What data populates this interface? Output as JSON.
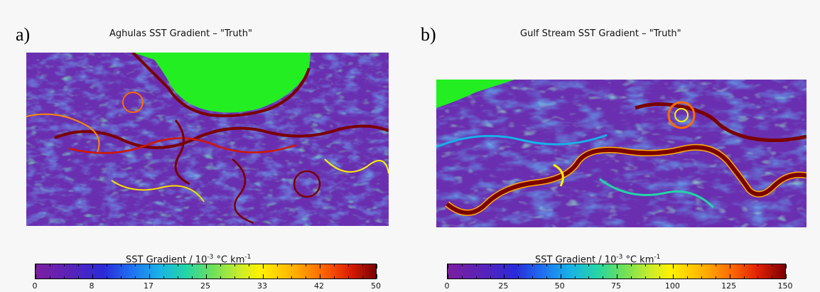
{
  "panel_a": {
    "letter": "a)",
    "title": "Aghulas SST Gradient – \"Truth\"",
    "colorbar": {
      "title_prefix": "SST Gradient / 10",
      "title_exp": "-3",
      "title_unit": " °C km",
      "title_unit_exp": "-1",
      "ticks": [
        "0",
        "8",
        "17",
        "25",
        "33",
        "42",
        "50"
      ]
    }
  },
  "panel_b": {
    "letter": "b)",
    "title": "Gulf Stream SST Gradient – \"Truth\"",
    "colorbar": {
      "title_prefix": "SST Gradient / 10",
      "title_exp": "-3",
      "title_unit": " °C km",
      "title_unit_exp": "-1",
      "ticks": [
        "0",
        "25",
        "50",
        "75",
        "100",
        "125",
        "150"
      ]
    }
  },
  "colors": {
    "land": "#22ee22",
    "background_field": "#6a2fb0",
    "front": "#7a0000"
  },
  "chart_data": [
    {
      "type": "heatmap",
      "title": "Aghulas SST Gradient – \"Truth\"",
      "colorbar_label": "SST Gradient / 10^-3 °C km^-1",
      "colorbar_range": [
        0,
        50
      ],
      "colorbar_ticks": [
        0,
        8,
        17,
        25,
        33,
        42,
        50
      ]
    },
    {
      "type": "heatmap",
      "title": "Gulf Stream SST Gradient – \"Truth\"",
      "colorbar_label": "SST Gradient / 10^-3 °C km^-1",
      "colorbar_range": [
        0,
        150
      ],
      "colorbar_ticks": [
        0,
        25,
        50,
        75,
        100,
        125,
        150
      ]
    }
  ]
}
